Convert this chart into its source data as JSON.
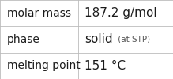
{
  "rows": [
    {
      "label": "molar mass",
      "value_parts": [
        {
          "text": "187.2 g/mol",
          "size": 11,
          "color": "#1a1a1a"
        }
      ]
    },
    {
      "label": "phase",
      "value_parts": [
        {
          "text": "solid",
          "size": 11,
          "color": "#1a1a1a"
        },
        {
          "text": " (at STP)",
          "size": 7.5,
          "color": "#555555"
        }
      ]
    },
    {
      "label": "melting point",
      "value_parts": [
        {
          "text": "151 °C",
          "size": 11,
          "color": "#1a1a1a"
        }
      ]
    }
  ],
  "label_fontsize": 10,
  "label_color": "#1a1a1a",
  "background_color": "#ffffff",
  "grid_color": "#bbbbbb",
  "col_split": 0.45,
  "font_family": "DejaVu Sans",
  "figwidth": 2.19,
  "figheight": 1.0,
  "dpi": 100
}
